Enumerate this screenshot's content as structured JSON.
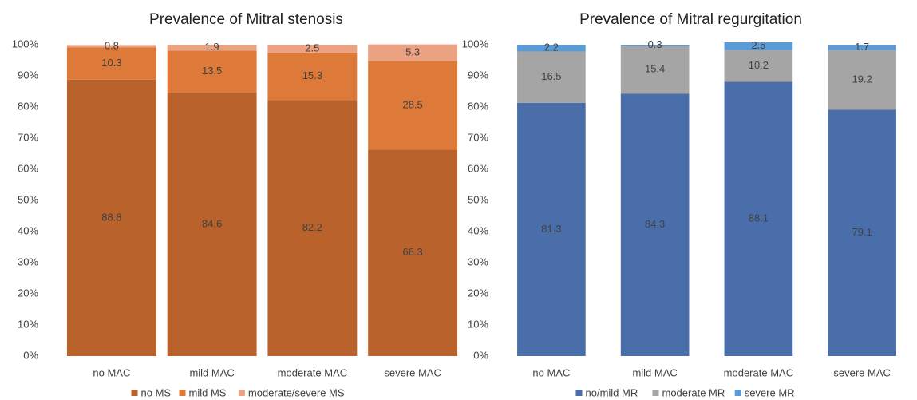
{
  "chart_data": [
    {
      "type": "stacked-bar",
      "title": "Prevalence of Mitral stenosis",
      "categories": [
        "no MAC",
        "mild MAC",
        "moderate MAC",
        "severe MAC"
      ],
      "series": [
        {
          "name": "no MS",
          "color": "#b9622c",
          "values": [
            88.8,
            84.6,
            82.2,
            66.3
          ]
        },
        {
          "name": "mild MS",
          "color": "#dd7a3a",
          "values": [
            10.3,
            13.5,
            15.3,
            28.5
          ]
        },
        {
          "name": "moderate/severe MS",
          "color": "#eba283",
          "values": [
            0.8,
            1.9,
            2.5,
            5.3
          ]
        }
      ],
      "ylim": [
        0,
        100
      ],
      "yticks": [
        {
          "value": 0,
          "label": "0%"
        },
        {
          "value": 10,
          "label": "10%"
        },
        {
          "value": 20,
          "label": "20%"
        },
        {
          "value": 30,
          "label": "30%"
        },
        {
          "value": 40,
          "label": "40%"
        },
        {
          "value": 50,
          "label": "50%"
        },
        {
          "value": 60,
          "label": "60%"
        },
        {
          "value": 70,
          "label": "70%"
        },
        {
          "value": 80,
          "label": "80%"
        },
        {
          "value": 90,
          "label": "90%"
        },
        {
          "value": 100,
          "label": "100%"
        }
      ]
    },
    {
      "type": "stacked-bar",
      "title": "Prevalence of Mitral regurgitation",
      "categories": [
        "no MAC",
        "mild MAC",
        "moderate MAC",
        "severe MAC"
      ],
      "series": [
        {
          "name": "no/mild MR",
          "color": "#4a6ea9",
          "values": [
            81.3,
            84.3,
            88.1,
            79.1
          ]
        },
        {
          "name": "moderate MR",
          "color": "#a5a5a5",
          "values": [
            16.5,
            15.4,
            10.2,
            19.2
          ]
        },
        {
          "name": "severe MR",
          "color": "#5b9bd5",
          "values": [
            2.2,
            0.3,
            2.5,
            1.7
          ]
        }
      ],
      "ylim": [
        0,
        100
      ],
      "yticks": [
        {
          "value": 0,
          "label": "0%"
        },
        {
          "value": 10,
          "label": "10%"
        },
        {
          "value": 20,
          "label": "20%"
        },
        {
          "value": 30,
          "label": "30%"
        },
        {
          "value": 40,
          "label": "40%"
        },
        {
          "value": 50,
          "label": "50%"
        },
        {
          "value": 60,
          "label": "60%"
        },
        {
          "value": 70,
          "label": "70%"
        },
        {
          "value": 80,
          "label": "80%"
        },
        {
          "value": 90,
          "label": "90%"
        },
        {
          "value": 100,
          "label": "100%"
        }
      ]
    }
  ]
}
